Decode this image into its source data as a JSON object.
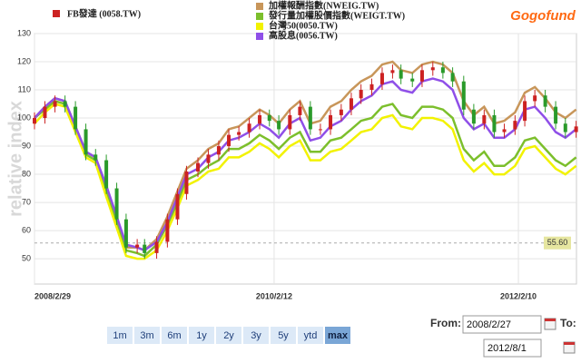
{
  "chart_data": {
    "type": "line",
    "logo": "Gogofund",
    "ylabel": "relative index",
    "xlim": [
      "2008/2/29",
      "2012/8/1"
    ],
    "ylim": [
      41,
      130
    ],
    "yticks": [
      50,
      60,
      70,
      80,
      90,
      100,
      110,
      120,
      130
    ],
    "xticks": [
      "2008/2/29",
      "2010/2/12",
      "2012/2/10"
    ],
    "grid": true,
    "reference_line": {
      "value": 55.6,
      "label": "55.60"
    },
    "x": [
      "2008/2/29",
      "2008/3/31",
      "2008/4/30",
      "2008/5/30",
      "2008/6/30",
      "2008/7/31",
      "2008/8/29",
      "2008/9/30",
      "2008/10/31",
      "2008/11/28",
      "2008/12/31",
      "2009/1/22",
      "2009/2/27",
      "2009/3/31",
      "2009/4/30",
      "2009/5/27",
      "2009/6/30",
      "2009/7/31",
      "2009/8/31",
      "2009/9/30",
      "2009/10/30",
      "2009/11/30",
      "2009/12/31",
      "2010/1/29",
      "2010/2/26",
      "2010/3/31",
      "2010/4/30",
      "2010/5/31",
      "2010/6/30",
      "2010/7/30",
      "2010/8/31",
      "2010/9/30",
      "2010/10/29",
      "2010/11/30",
      "2010/12/31",
      "2011/1/31",
      "2011/2/25",
      "2011/3/31",
      "2011/4/29",
      "2011/5/31",
      "2011/6/30",
      "2011/7/29",
      "2011/8/31",
      "2011/9/30",
      "2011/10/31",
      "2011/11/30",
      "2011/12/30",
      "2012/1/31",
      "2012/2/29",
      "2012/3/30",
      "2012/4/30",
      "2012/5/31",
      "2012/6/29",
      "2012/7/31"
    ],
    "candles": {
      "name": "FB發達 (0058.TW)",
      "color": "#cc2222",
      "color_down": "#2a9a2a",
      "open": [
        98,
        100,
        104,
        106,
        104,
        96,
        87,
        85,
        75,
        64,
        54,
        55,
        52,
        56,
        64,
        73,
        81,
        84,
        87,
        90,
        94,
        95,
        98,
        101,
        99,
        96,
        101,
        104,
        96,
        96,
        101,
        103,
        107,
        110,
        112,
        116,
        117,
        114,
        113,
        117,
        118,
        116,
        113,
        103,
        98,
        101,
        95,
        96,
        99,
        106,
        108,
        104,
        98,
        95
      ],
      "high": [
        102,
        106,
        108,
        108,
        106,
        98,
        89,
        87,
        77,
        66,
        57,
        57,
        58,
        66,
        75,
        83,
        86,
        89,
        92,
        96,
        97,
        100,
        103,
        103,
        101,
        103,
        106,
        106,
        98,
        103,
        105,
        109,
        112,
        114,
        118,
        119,
        119,
        116,
        119,
        120,
        120,
        118,
        115,
        105,
        103,
        103,
        98,
        101,
        108,
        110,
        110,
        106,
        100,
        99
      ],
      "low": [
        96,
        98,
        102,
        102,
        94,
        85,
        83,
        73,
        62,
        52,
        52,
        50,
        50,
        54,
        62,
        71,
        79,
        82,
        85,
        88,
        92,
        93,
        96,
        97,
        94,
        94,
        99,
        94,
        94,
        94,
        99,
        101,
        105,
        108,
        110,
        114,
        112,
        111,
        111,
        115,
        114,
        111,
        101,
        96,
        96,
        93,
        93,
        94,
        97,
        104,
        102,
        96,
        93,
        93
      ],
      "close": [
        100,
        104,
        106,
        104,
        96,
        87,
        85,
        75,
        64,
        54,
        55,
        52,
        56,
        64,
        73,
        81,
        84,
        87,
        90,
        94,
        95,
        98,
        101,
        99,
        96,
        101,
        104,
        96,
        96,
        101,
        103,
        107,
        110,
        112,
        116,
        117,
        114,
        113,
        117,
        118,
        116,
        113,
        103,
        98,
        101,
        95,
        96,
        99,
        106,
        108,
        104,
        98,
        95,
        97
      ]
    },
    "series": [
      {
        "name": "加權報酬指數(NWEIG.TW)",
        "color": "#c8965a",
        "values": [
          100,
          104,
          107,
          106,
          97,
          88,
          86,
          75,
          64,
          54,
          54,
          53,
          57,
          65,
          74,
          82,
          85,
          89,
          91,
          96,
          97,
          100,
          103,
          101,
          98,
          103,
          106,
          98,
          99,
          104,
          106,
          110,
          113,
          115,
          119,
          120,
          117,
          116,
          119,
          120,
          119,
          116,
          106,
          101,
          104,
          98,
          99,
          102,
          109,
          111,
          107,
          102,
          100,
          103
        ]
      },
      {
        "name": "發行量加權股價指數(WEIGT.TW)",
        "color": "#7cbf2c",
        "values": [
          100,
          103,
          106,
          105,
          96,
          87,
          85,
          74,
          63,
          53,
          52,
          51,
          55,
          62,
          70,
          78,
          80,
          83,
          85,
          89,
          89,
          91,
          94,
          92,
          89,
          93,
          95,
          88,
          88,
          92,
          93,
          96,
          99,
          100,
          104,
          105,
          101,
          100,
          104,
          104,
          103,
          100,
          89,
          85,
          88,
          83,
          83,
          86,
          92,
          93,
          89,
          85,
          83,
          86
        ]
      },
      {
        "name": "台灣50(0050.TW)",
        "color": "#f2f200",
        "values": [
          98,
          102,
          105,
          104,
          95,
          86,
          84,
          72,
          61,
          51,
          50,
          50,
          53,
          60,
          68,
          76,
          78,
          81,
          82,
          86,
          86,
          88,
          91,
          89,
          86,
          90,
          92,
          85,
          85,
          88,
          89,
          92,
          95,
          96,
          100,
          101,
          97,
          96,
          100,
          100,
          99,
          96,
          85,
          81,
          84,
          80,
          80,
          83,
          89,
          90,
          86,
          82,
          80,
          83
        ]
      },
      {
        "name": "高股息(0056.TW)",
        "color": "#8f4fe8",
        "values": [
          100,
          104,
          107,
          106,
          97,
          88,
          86,
          76,
          65,
          55,
          54,
          53,
          56,
          63,
          72,
          80,
          82,
          86,
          88,
          92,
          93,
          95,
          98,
          96,
          93,
          98,
          100,
          92,
          93,
          97,
          99,
          103,
          106,
          108,
          112,
          113,
          110,
          109,
          113,
          114,
          113,
          110,
          100,
          96,
          98,
          93,
          93,
          96,
          103,
          104,
          100,
          95,
          93,
          96
        ]
      }
    ]
  },
  "ui": {
    "range_buttons": [
      "1m",
      "3m",
      "6m",
      "1y",
      "2y",
      "3y",
      "5y",
      "ytd",
      "max"
    ],
    "from_label": "From:",
    "from_value": "2008/2/27",
    "to_label": "To:",
    "to_value": "2012/8/1"
  }
}
